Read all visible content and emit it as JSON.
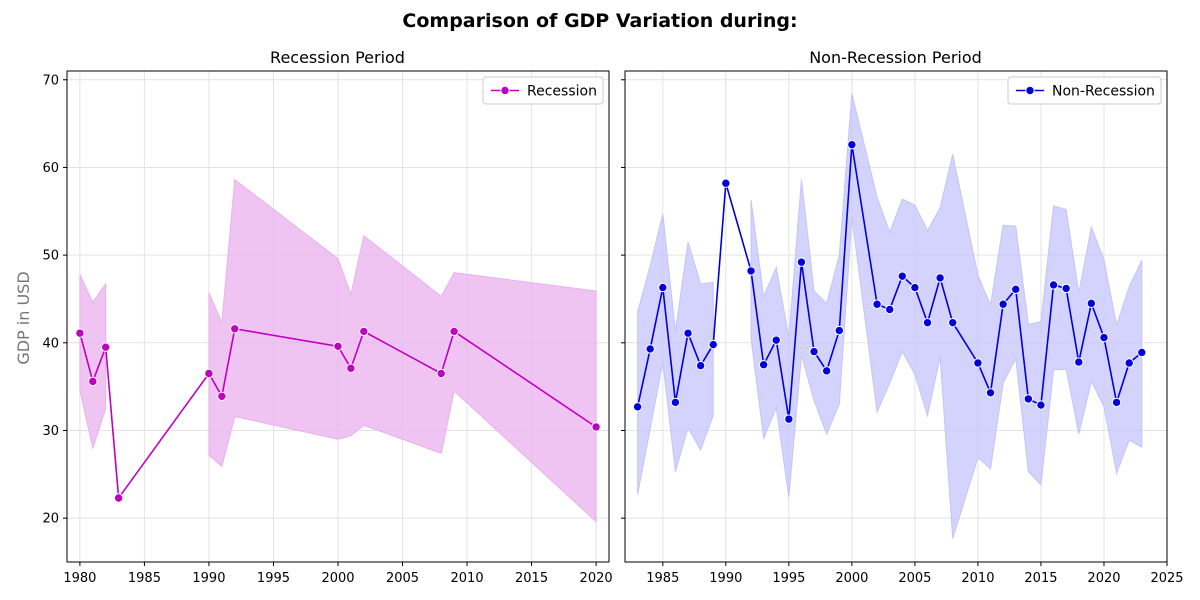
{
  "figure": {
    "title": "Comparison of GDP Variation during:",
    "ylabel": "GDP in USD"
  },
  "chart_data": [
    {
      "type": "line",
      "title": "Recession Period",
      "xlabel": "",
      "ylabel": "GDP in USD",
      "xlim": [
        1979,
        2021
      ],
      "ylim": [
        15,
        71
      ],
      "xticks": [
        "1980",
        "1985",
        "1990",
        "1995",
        "2000",
        "2005",
        "2010",
        "2015",
        "2020"
      ],
      "yticks": [
        "20",
        "30",
        "40",
        "50",
        "60",
        "70"
      ],
      "grid": true,
      "legend": "top-right",
      "color": "#bf00bf",
      "band_color": "#e9b0ee",
      "series": [
        {
          "name": "Recession",
          "segments": [
            {
              "x": [
                1980,
                1981,
                1982
              ],
              "y": [
                41.1,
                35.6,
                39.5
              ],
              "lower": [
                34.6,
                28.0,
                32.5
              ],
              "upper": [
                47.8,
                44.6,
                46.7
              ]
            },
            {
              "x": [
                1982,
                1983,
                1990
              ],
              "y": [
                39.5,
                22.3,
                36.5
              ]
            },
            {
              "x": [
                1990,
                1991,
                1992,
                2000,
                2001,
                2002,
                2008,
                2009,
                2020
              ],
              "y": [
                36.5,
                33.9,
                41.6,
                39.6,
                37.1,
                41.3,
                36.5,
                41.3,
                30.4
              ],
              "lower": [
                27.2,
                25.9,
                31.6,
                29.0,
                29.4,
                30.6,
                27.4,
                34.5,
                19.6
              ],
              "upper": [
                45.7,
                42.3,
                58.6,
                49.6,
                45.5,
                52.2,
                45.3,
                48.0,
                45.9
              ]
            }
          ]
        }
      ]
    },
    {
      "type": "line",
      "title": "Non-Recession Period",
      "xlabel": "",
      "ylabel": "",
      "xlim": [
        1982,
        2025
      ],
      "ylim": [
        15,
        71
      ],
      "xticks": [
        "1985",
        "1990",
        "1995",
        "2000",
        "2005",
        "2010",
        "2015",
        "2020",
        "2025"
      ],
      "yticks": [],
      "grid": true,
      "legend": "top-right",
      "color": "#0000dd",
      "band_color": "#c4c4fc",
      "series": [
        {
          "name": "Non-Recession",
          "segments": [
            {
              "x": [
                1983,
                1984,
                1985,
                1986,
                1987,
                1988,
                1989
              ],
              "y": [
                32.7,
                39.3,
                46.3,
                33.2,
                41.1,
                37.4,
                39.8
              ],
              "lower": [
                22.7,
                30.2,
                37.8,
                25.3,
                30.3,
                27.8,
                31.7
              ],
              "upper": [
                43.5,
                48.8,
                54.7,
                41.3,
                51.5,
                46.7,
                46.9
              ]
            },
            {
              "x": [
                1989,
                1990,
                1992
              ],
              "y": [
                39.8,
                58.2,
                48.2
              ]
            },
            {
              "x": [
                1992,
                1993,
                1994,
                1995,
                1996,
                1997,
                1998,
                1999,
                2000,
                2002,
                2003,
                2004,
                2005,
                2006,
                2007,
                2008,
                2010,
                2011,
                2012,
                2013,
                2014,
                2015,
                2016,
                2017,
                2018,
                2019,
                2020,
                2021,
                2022,
                2023
              ],
              "y": [
                48.2,
                37.5,
                40.3,
                31.3,
                49.2,
                39.0,
                36.8,
                41.4,
                62.6,
                44.4,
                43.8,
                47.6,
                46.3,
                42.3,
                47.4,
                42.3,
                37.7,
                34.3,
                44.4,
                46.1,
                33.6,
                32.9,
                46.6,
                46.2,
                37.8,
                44.5,
                40.6,
                33.2,
                37.7,
                38.9
              ],
              "lower": [
                40.5,
                29.1,
                32.6,
                22.4,
                38.6,
                33.4,
                29.6,
                33.0,
                54.3,
                32.1,
                35.4,
                39.0,
                36.4,
                31.7,
                38.4,
                17.7,
                26.9,
                25.6,
                35.4,
                38.2,
                25.3,
                23.8,
                36.9,
                37.0,
                29.6,
                35.6,
                32.7,
                25.1,
                28.9,
                28.1
              ],
              "upper": [
                56.3,
                45.3,
                48.6,
                40.6,
                58.6,
                45.9,
                44.5,
                50.0,
                68.4,
                56.6,
                52.6,
                56.4,
                55.7,
                52.8,
                55.4,
                61.5,
                47.7,
                44.3,
                53.4,
                53.3,
                42.1,
                42.4,
                55.6,
                55.2,
                45.7,
                53.2,
                49.5,
                42.0,
                46.4,
                49.4
              ]
            }
          ]
        }
      ]
    }
  ]
}
